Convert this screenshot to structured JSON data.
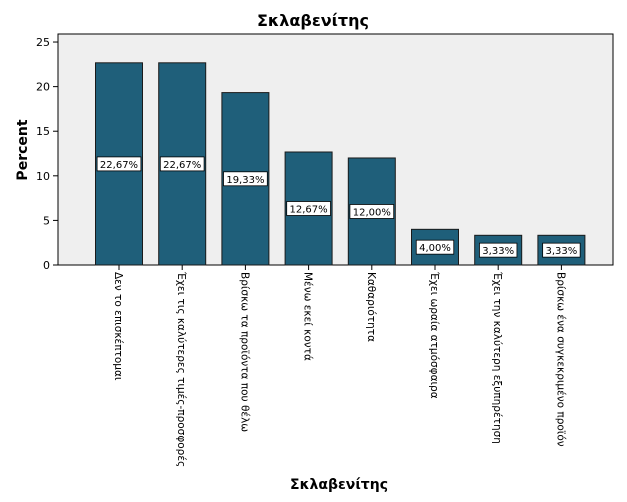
{
  "chart_data": {
    "type": "bar",
    "title": "Σκλαβενίτης",
    "xlabel": "Σκλαβενίτης",
    "ylabel": "Percent",
    "categories": [
      "Δεν το επισκέπτομαι",
      "Έχει τις καλύτερες τιμές-προσφορές",
      "Βρίσκω τα προϊόντα που θέλω",
      "Μένω εκεί κοντά",
      "Καθαριότητα",
      "Έχει ωραία ατμόσφαιρα",
      "Έχει την καλύτερη εξυπηρέτηση",
      "Βρίσκω ένα συγκεκριμένο προϊόν"
    ],
    "values": [
      22.67,
      22.67,
      19.33,
      12.67,
      12.0,
      4.0,
      3.33,
      3.33
    ],
    "data_labels": [
      "22,67%",
      "22,67%",
      "19,33%",
      "12,67%",
      "12,00%",
      "4,00%",
      "3,33%",
      "3,33%"
    ],
    "yticks": [
      0,
      5,
      10,
      15,
      20,
      25
    ],
    "ylim": [
      0,
      25.9
    ],
    "grid": false,
    "colors": {
      "bar": "#1f5f7a",
      "plot_background": "#efefef",
      "bar_edge": "#1a1a1a"
    }
  }
}
